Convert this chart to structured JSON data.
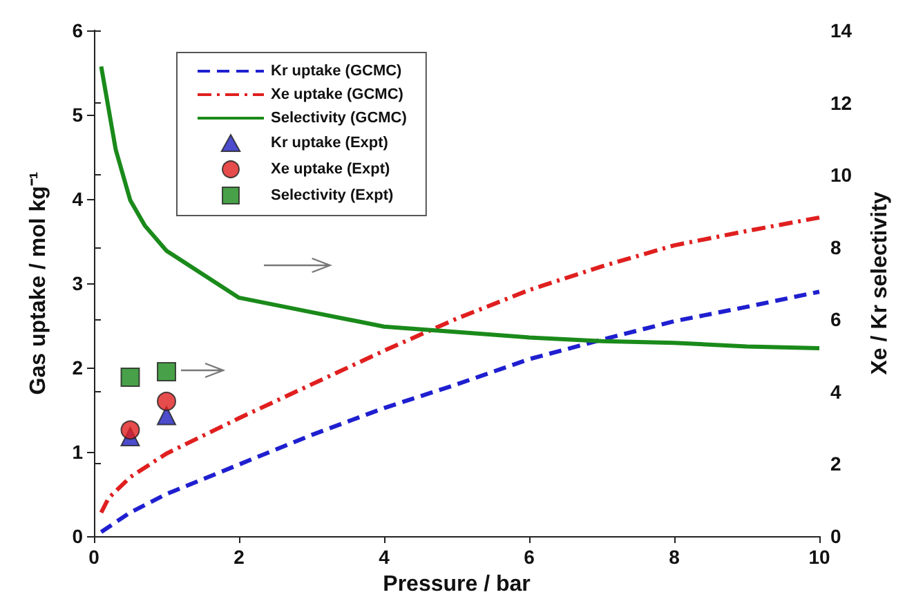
{
  "chart_data": {
    "type": "line",
    "xlabel": "Pressure / bar",
    "ylabel": "Gas uptake / mol kg⁻¹",
    "y2label": "Xe / Kr selectivity",
    "xlim": [
      0,
      10
    ],
    "xticks": [
      0,
      2,
      4,
      6,
      8,
      10
    ],
    "ylim": [
      0,
      6
    ],
    "yticks": [
      0,
      1,
      2,
      3,
      4,
      5,
      6
    ],
    "y2lim": [
      0,
      14
    ],
    "y2ticks": [
      0,
      2,
      4,
      6,
      8,
      10,
      12,
      14
    ],
    "grid": false,
    "legend": "top",
    "series": [
      {
        "name": "Kr uptake (GCMC)",
        "type": "line",
        "line_style": "dashed",
        "marker": "none",
        "color": "#1f1fd0",
        "x": [
          0.1,
          0.5,
          1,
          2,
          3,
          4,
          5,
          6,
          7,
          8,
          9,
          10
        ],
        "values": [
          0.05,
          0.28,
          0.5,
          0.85,
          1.2,
          1.52,
          1.8,
          2.1,
          2.33,
          2.55,
          2.72,
          2.9
        ]
      },
      {
        "name": "Xe uptake (GCMC)",
        "type": "line",
        "line_style": "dashdot",
        "marker": "none",
        "color": "#e01f1f",
        "x": [
          0.1,
          0.2,
          0.5,
          1,
          2,
          3,
          4,
          5,
          6,
          7,
          8,
          9,
          10
        ],
        "values": [
          0.28,
          0.45,
          0.7,
          0.98,
          1.4,
          1.8,
          2.2,
          2.58,
          2.92,
          3.2,
          3.45,
          3.62,
          3.78
        ]
      },
      {
        "name": "Selectivity (GCMC)",
        "type": "line",
        "axis": "y2",
        "line_style": "solid",
        "marker": "none",
        "color": "#1a8a1a",
        "x": [
          0.1,
          0.3,
          0.5,
          0.7,
          1,
          2,
          3,
          4,
          5,
          6,
          7,
          8,
          9,
          10
        ],
        "values": [
          13.0,
          10.7,
          9.3,
          8.6,
          7.9,
          6.6,
          6.2,
          5.8,
          5.65,
          5.5,
          5.4,
          5.35,
          5.25,
          5.2
        ]
      },
      {
        "name": "Kr uptake (Expt)",
        "type": "scatter",
        "marker": "triangle",
        "color": "#1f1fc0",
        "x": [
          0.5,
          1
        ],
        "values": [
          1.18,
          1.43
        ]
      },
      {
        "name": "Xe uptake (Expt)",
        "type": "scatter",
        "marker": "circle",
        "color": "#e01f1f",
        "x": [
          0.5,
          1
        ],
        "values": [
          1.26,
          1.6
        ]
      },
      {
        "name": "Selectivity (Expt)",
        "type": "scatter",
        "axis": "y2",
        "marker": "square",
        "color": "#1a8a1a",
        "x": [
          0.5,
          1
        ],
        "values": [
          4.4,
          4.55
        ]
      }
    ]
  }
}
